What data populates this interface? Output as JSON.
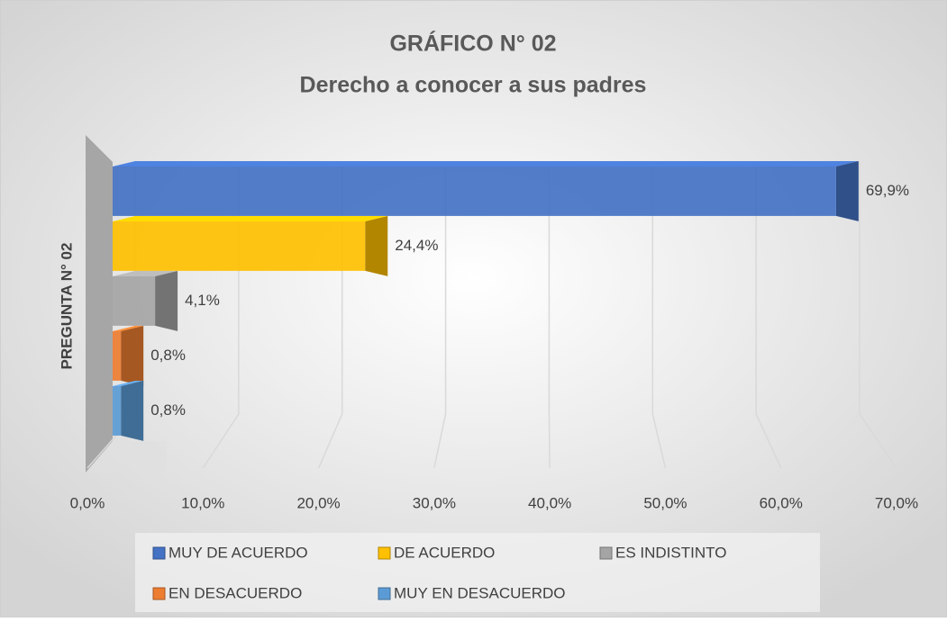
{
  "chart_data": {
    "type": "bar3d-horizontal",
    "title": "GRÁFICO N° 02",
    "subtitle": "Derecho a conocer a sus padres",
    "categories": [
      "PREGUNTA N° 02"
    ],
    "series": [
      {
        "name": "MUY DE ACUERDO",
        "color": "#4472c4",
        "values": [
          69.9
        ],
        "value_labels": [
          "69,9%"
        ]
      },
      {
        "name": "DE ACUERDO",
        "color": "#ffc000",
        "values": [
          24.4
        ],
        "value_labels": [
          "24,4%"
        ]
      },
      {
        "name": "ES INDISTINTO",
        "color": "#a5a5a5",
        "values": [
          4.1
        ],
        "value_labels": [
          "4,1%"
        ]
      },
      {
        "name": "EN DESACUERDO",
        "color": "#ed7d31",
        "values": [
          0.8
        ],
        "value_labels": [
          "0,8%"
        ]
      },
      {
        "name": "MUY EN DESACUERDO",
        "color": "#5b9bd5",
        "values": [
          0.8
        ],
        "value_labels": [
          "0,8%"
        ]
      }
    ],
    "xlim": [
      0,
      70
    ],
    "xticks": [
      {
        "value": 0,
        "label": "0,0%"
      },
      {
        "value": 10,
        "label": "10,0%"
      },
      {
        "value": 20,
        "label": "20,0%"
      },
      {
        "value": 30,
        "label": "30,0%"
      },
      {
        "value": 40,
        "label": "40,0%"
      },
      {
        "value": 50,
        "label": "50,0%"
      },
      {
        "value": 60,
        "label": "60,0%"
      },
      {
        "value": 70,
        "label": "70,0%"
      }
    ],
    "grid": true,
    "legend": "bottom"
  }
}
